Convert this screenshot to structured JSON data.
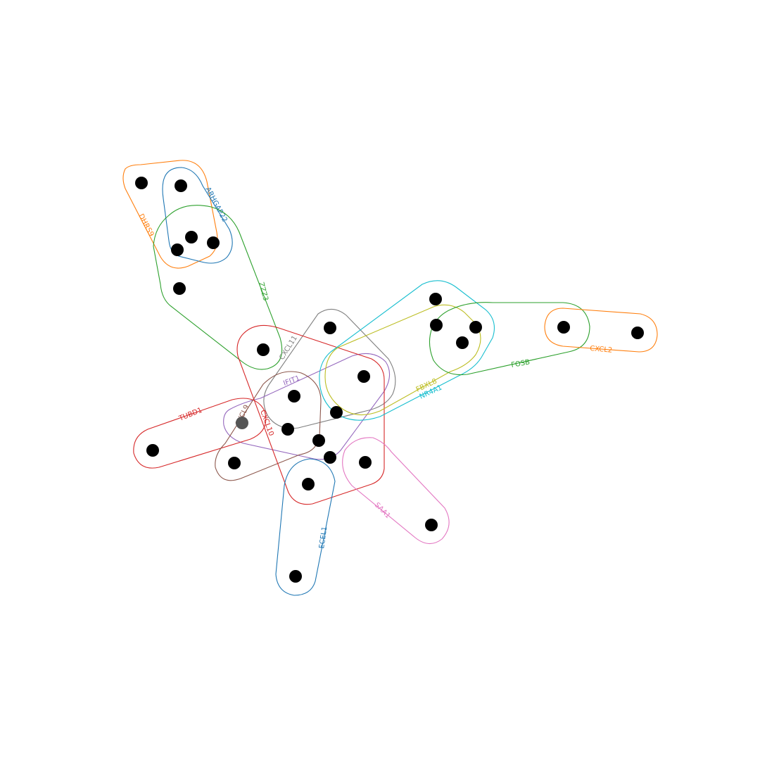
{
  "hyperedges": [
    {
      "label": "DHRS9",
      "color": "#ff7f0e"
    },
    {
      "label": "ARHGAP22",
      "color": "#1f77b4"
    },
    {
      "label": "ZZZ3",
      "color": "#2ca02c"
    },
    {
      "label": "CXCL11",
      "color": "#7f7f7f"
    },
    {
      "label": "IFIT1",
      "color": "#9467bd"
    },
    {
      "label": "TUBD1",
      "color": "#d62728"
    },
    {
      "label": "CXCL9",
      "color": "#8c564b"
    },
    {
      "label": "CXCL10",
      "color": "#d62728"
    },
    {
      "label": "FBXL8",
      "color": "#bcbd22"
    },
    {
      "label": "NR4A1",
      "color": "#17becf"
    },
    {
      "label": "FOSB",
      "color": "#2ca02c"
    },
    {
      "label": "CXCL2",
      "color": "#ff7f0e"
    },
    {
      "label": "SAA1",
      "color": "#e377c2"
    },
    {
      "label": "ECEL1",
      "color": "#1f77b4"
    }
  ]
}
